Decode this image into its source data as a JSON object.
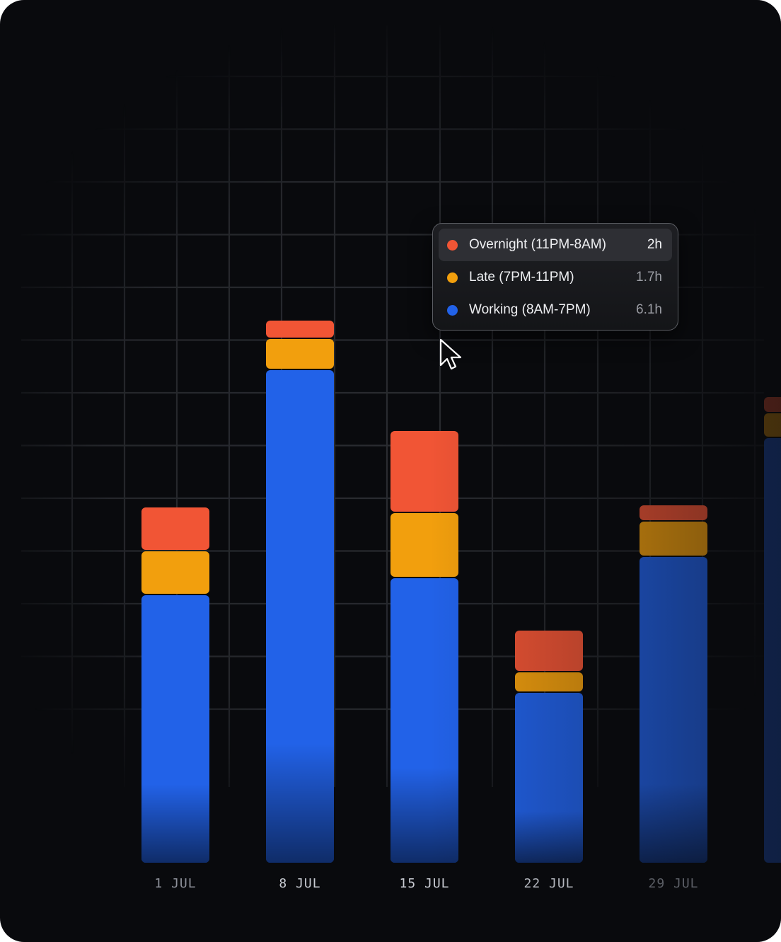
{
  "chart_data": {
    "type": "bar",
    "stacked": true,
    "categories": [
      "1 JUL",
      "8 JUL",
      "15 JUL",
      "22 JUL",
      "29 JUL"
    ],
    "series": [
      {
        "name": "Working (8AM-7PM)",
        "color": "#2262e8",
        "values": [
          6.3,
          11.6,
          6.7,
          4.0,
          7.2
        ]
      },
      {
        "name": "Late (7PM-11PM)",
        "color": "#f29f0d",
        "values": [
          1.0,
          0.7,
          1.5,
          0.45,
          0.8
        ]
      },
      {
        "name": "Overnight (11PM-8AM)",
        "color": "#f15535",
        "values": [
          1.0,
          0.4,
          1.9,
          0.95,
          0.35
        ]
      }
    ],
    "partial_bar": {
      "working": 10.0,
      "late": 0.55,
      "overnight": 0.35
    },
    "ylim": [
      0,
      16
    ],
    "grid": true,
    "xlabel": "",
    "ylabel": ""
  },
  "tooltip": {
    "rows": [
      {
        "label": "Overnight (11PM-8AM)",
        "value": "2h",
        "color": "#f15535",
        "active": true
      },
      {
        "label": "Late (7PM-11PM)",
        "value": "1.7h",
        "color": "#f29f0d",
        "active": false
      },
      {
        "label": "Working (8AM-7PM)",
        "value": "6.1h",
        "color": "#2262e8",
        "active": false
      }
    ]
  }
}
